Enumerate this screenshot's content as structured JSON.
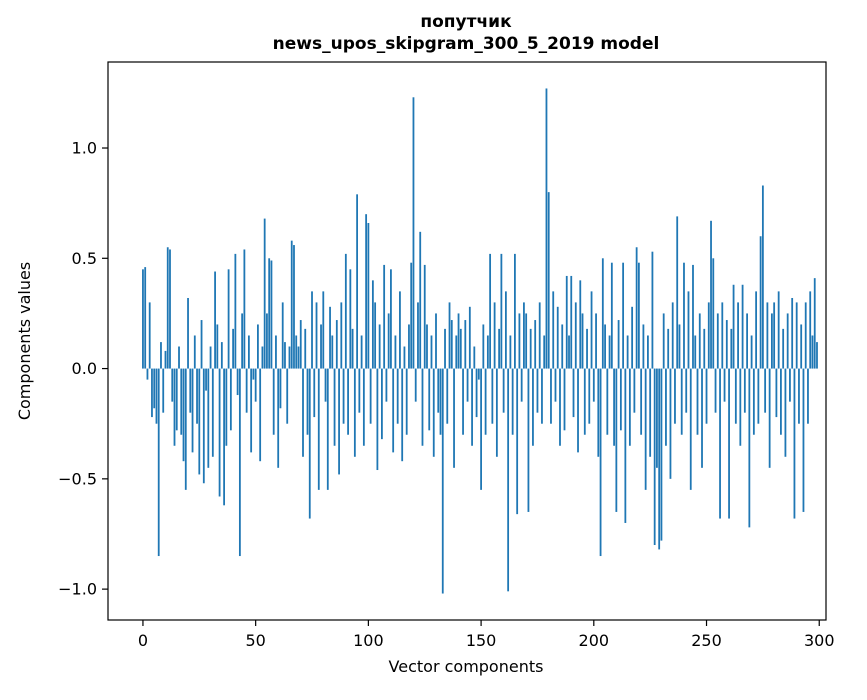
{
  "chart_data": {
    "type": "bar",
    "title": "попутчик",
    "subtitle": "news_upos_skipgram_300_5_2019 model",
    "xlabel": "Vector components",
    "ylabel": "Components values",
    "bar_color": "#1f77b4",
    "spine_color": "#000000",
    "xlim": [
      -15.5,
      303
    ],
    "ylim": [
      -1.14,
      1.39
    ],
    "x_ticks": [
      0,
      50,
      100,
      150,
      200,
      250,
      300
    ],
    "y_ticks": [
      -1.0,
      -0.5,
      0.0,
      0.5,
      1.0
    ],
    "n_components": 300,
    "values": [
      0.45,
      0.46,
      -0.05,
      0.3,
      -0.22,
      -0.18,
      -0.25,
      -0.85,
      0.12,
      -0.2,
      0.08,
      0.55,
      0.54,
      -0.15,
      -0.35,
      -0.28,
      0.1,
      -0.3,
      -0.42,
      -0.55,
      0.32,
      -0.2,
      -0.38,
      0.15,
      -0.25,
      -0.48,
      0.22,
      -0.52,
      -0.1,
      -0.45,
      0.1,
      -0.4,
      0.44,
      0.2,
      -0.58,
      0.12,
      -0.62,
      -0.35,
      0.45,
      -0.28,
      0.18,
      0.52,
      -0.12,
      -0.85,
      0.25,
      0.54,
      -0.2,
      0.15,
      -0.38,
      -0.05,
      -0.15,
      0.2,
      -0.42,
      0.1,
      0.68,
      0.25,
      0.5,
      0.49,
      -0.3,
      0.15,
      -0.45,
      -0.18,
      0.3,
      0.12,
      -0.25,
      0.1,
      0.58,
      0.56,
      0.15,
      0.1,
      0.22,
      -0.4,
      0.18,
      -0.3,
      -0.68,
      0.35,
      -0.22,
      0.3,
      -0.55,
      0.2,
      0.35,
      -0.15,
      -0.55,
      0.28,
      0.15,
      -0.35,
      0.22,
      -0.48,
      0.3,
      -0.25,
      0.52,
      -0.3,
      0.45,
      0.18,
      -0.4,
      0.79,
      -0.2,
      0.15,
      -0.35,
      0.7,
      0.66,
      -0.25,
      0.4,
      0.3,
      -0.46,
      0.2,
      -0.32,
      0.47,
      -0.15,
      0.25,
      0.45,
      -0.38,
      0.15,
      -0.25,
      0.35,
      -0.42,
      0.1,
      -0.3,
      0.2,
      0.48,
      1.23,
      -0.15,
      0.3,
      0.62,
      -0.35,
      0.47,
      0.2,
      -0.28,
      0.15,
      -0.4,
      0.25,
      -0.2,
      -0.3,
      -1.02,
      0.18,
      -0.25,
      0.3,
      0.22,
      -0.45,
      0.15,
      0.25,
      0.18,
      -0.3,
      0.22,
      -0.15,
      0.28,
      -0.35,
      0.1,
      -0.22,
      -0.05,
      -0.55,
      0.2,
      -0.3,
      0.15,
      0.52,
      -0.25,
      0.3,
      -0.4,
      0.18,
      0.52,
      -0.2,
      0.35,
      -1.01,
      0.15,
      -0.3,
      0.52,
      -0.66,
      0.25,
      -0.15,
      0.3,
      0.25,
      -0.65,
      0.18,
      -0.35,
      0.22,
      -0.2,
      0.3,
      -0.25,
      0.15,
      1.27,
      0.8,
      -0.25,
      0.35,
      -0.15,
      0.28,
      -0.35,
      0.2,
      -0.28,
      0.42,
      0.15,
      0.42,
      -0.22,
      0.3,
      -0.38,
      0.4,
      0.25,
      -0.3,
      0.18,
      -0.25,
      0.35,
      -0.15,
      0.25,
      -0.4,
      -0.85,
      0.5,
      0.2,
      -0.3,
      0.15,
      0.48,
      -0.35,
      -0.65,
      0.22,
      -0.28,
      0.48,
      -0.7,
      0.15,
      -0.35,
      0.28,
      -0.2,
      0.55,
      0.48,
      -0.3,
      0.2,
      -0.55,
      0.15,
      -0.4,
      0.53,
      -0.8,
      -0.45,
      -0.82,
      -0.78,
      0.25,
      -0.35,
      0.18,
      -0.5,
      0.3,
      -0.25,
      0.69,
      0.2,
      -0.3,
      0.48,
      -0.2,
      0.35,
      -0.55,
      0.47,
      0.15,
      -0.3,
      0.25,
      -0.45,
      0.18,
      -0.25,
      0.3,
      0.67,
      0.5,
      -0.2,
      0.25,
      -0.68,
      0.3,
      -0.15,
      0.22,
      -0.68,
      0.18,
      0.38,
      -0.25,
      0.3,
      -0.35,
      0.38,
      -0.2,
      0.25,
      -0.72,
      0.15,
      -0.3,
      0.35,
      -0.25,
      0.6,
      0.83,
      -0.2,
      0.3,
      -0.45,
      0.25,
      0.3,
      -0.22,
      0.35,
      -0.3,
      0.18,
      -0.4,
      0.25,
      -0.15,
      0.32,
      -0.68,
      0.3,
      -0.25,
      0.2,
      -0.65,
      0.3,
      -0.25,
      0.35,
      0.15,
      0.41,
      0.12
    ]
  }
}
